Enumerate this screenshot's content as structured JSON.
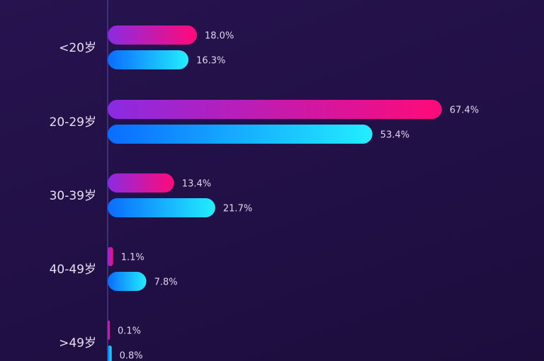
{
  "chart_data": {
    "type": "bar",
    "orientation": "horizontal",
    "categories": [
      "<20岁",
      "20-29岁",
      "30-39岁",
      "40-49岁",
      ">49岁"
    ],
    "series": [
      {
        "values": [
          18.0,
          67.4,
          13.4,
          1.1,
          0.1
        ],
        "labels": [
          "18.0%",
          "67.4%",
          "13.4%",
          "1.1%",
          "0.1%"
        ],
        "color_start": "#8a2be2",
        "color_end": "#ff0a78"
      },
      {
        "values": [
          16.3,
          53.4,
          21.7,
          7.8,
          0.8
        ],
        "labels": [
          "16.3%",
          "53.4%",
          "21.7%",
          "7.8%",
          "0.8%"
        ],
        "color_start": "#0a6cff",
        "color_end": "#22eeff"
      }
    ],
    "xlim": [
      0,
      100
    ],
    "grid": false,
    "legend": "none"
  },
  "colors": {
    "background": "#221047",
    "axis": "#4a3a88"
  }
}
